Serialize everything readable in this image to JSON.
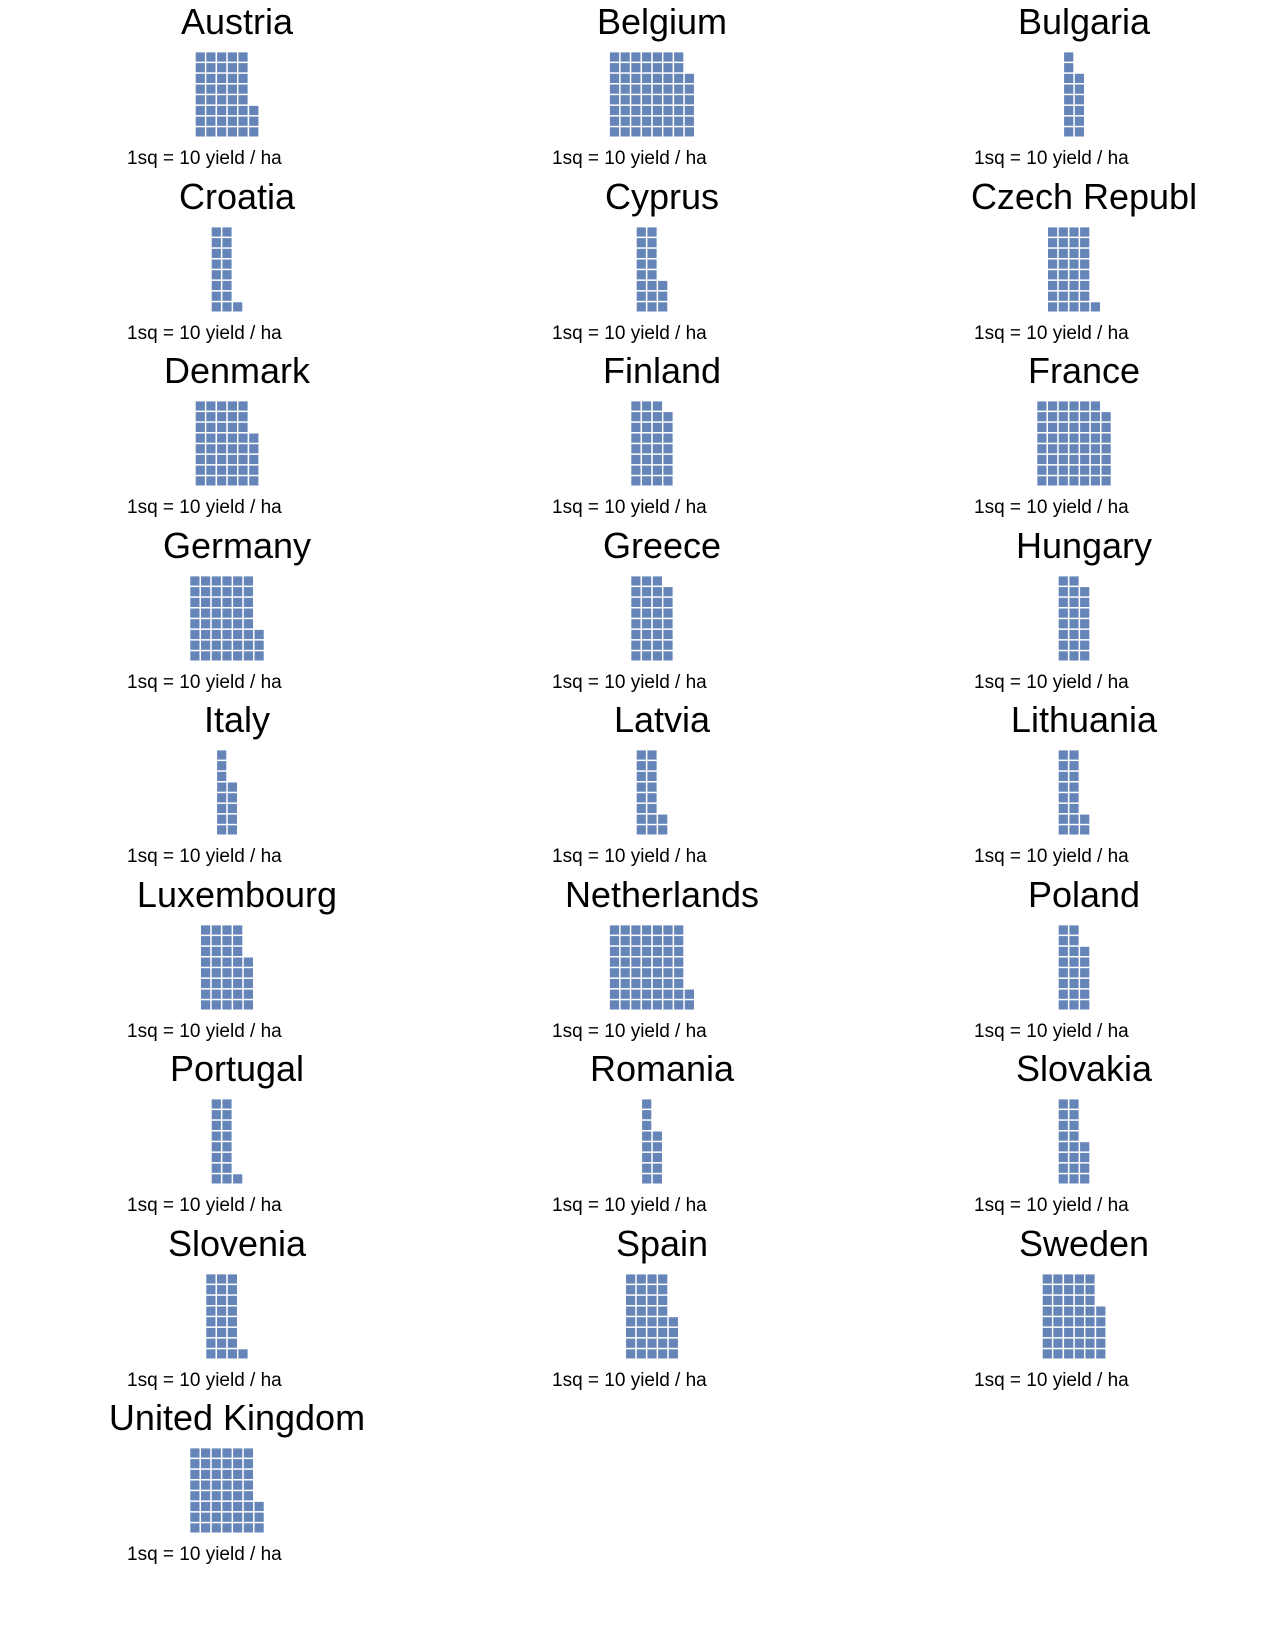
{
  "chart_data": {
    "type": "waffle",
    "square_color": "#6584b8",
    "unit_label": "1sq = 10 yield / ha",
    "panels": [
      {
        "country": "Austria",
        "squares": 43
      },
      {
        "country": "Belgium",
        "squares": 62
      },
      {
        "country": "Bulgaria",
        "squares": 14
      },
      {
        "country": "Croatia",
        "squares": 17
      },
      {
        "country": "Cyprus",
        "squares": 19
      },
      {
        "country": "Czech Republ",
        "squares": 33
      },
      {
        "country": "Denmark",
        "squares": 45
      },
      {
        "country": "Finland",
        "squares": 31
      },
      {
        "country": "France",
        "squares": 55
      },
      {
        "country": "Germany",
        "squares": 51
      },
      {
        "country": "Greece",
        "squares": 31
      },
      {
        "country": "Hungary",
        "squares": 23
      },
      {
        "country": "Italy",
        "squares": 13
      },
      {
        "country": "Latvia",
        "squares": 18
      },
      {
        "country": "Lithuania",
        "squares": 18
      },
      {
        "country": "Luxembourg",
        "squares": 37
      },
      {
        "country": "Netherlands",
        "squares": 58
      },
      {
        "country": "Poland",
        "squares": 22
      },
      {
        "country": "Portugal",
        "squares": 17
      },
      {
        "country": "Romania",
        "squares": 13
      },
      {
        "country": "Slovakia",
        "squares": 20
      },
      {
        "country": "Slovenia",
        "squares": 25
      },
      {
        "country": "Spain",
        "squares": 36
      },
      {
        "country": "Sweden",
        "squares": 45
      },
      {
        "country": "United Kingdom",
        "squares": 51
      }
    ]
  }
}
